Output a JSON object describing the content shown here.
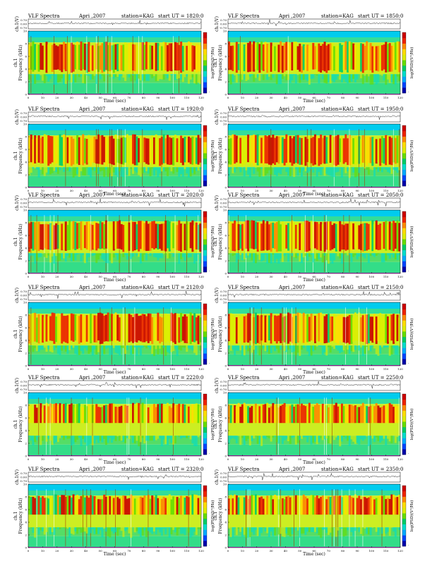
{
  "page": {
    "title_left": "VLF Spectra",
    "date": "Apri ,2007",
    "station": "station=KAG",
    "start_prefix": "start  UT ="
  },
  "colors": {
    "colormap": [
      "#0000aa",
      "#0044ff",
      "#00aaff",
      "#00ddcc",
      "#00cc66",
      "#66dd00",
      "#ddee00",
      "#ffdd00",
      "#ff8800",
      "#ee2200",
      "#cc0000"
    ],
    "background_band": "#00ccee",
    "low_band": "#00e0c0"
  },
  "panel_labels": {
    "ch1_axis": "ch.1(V)",
    "ch1_ticks": [
      "0.70",
      "0.00",
      "-0.70"
    ],
    "freq_label": "Frequency  (kHz)",
    "spectrum_ch": "ch.1",
    "freq_ticks": [
      "0",
      "2",
      "4",
      "6",
      "8",
      "10"
    ],
    "x_ticks": [
      "0",
      "10",
      "20",
      "30",
      "40",
      "50",
      "60",
      "70",
      "80",
      "90",
      "100",
      "110",
      "120"
    ],
    "xlabel": "Time  (sec)",
    "colorbar_label": "log(PSD)(V²/Hz)",
    "colorbar_ticks": [
      "-",
      "",
      ""
    ]
  },
  "chart_data": [
    {
      "type": "heatmap",
      "start_ut": "1820:0",
      "xlim": [
        0,
        120
      ],
      "ylim": [
        0,
        10
      ]
    },
    {
      "type": "heatmap",
      "start_ut": "1850:0",
      "xlim": [
        0,
        120
      ],
      "ylim": [
        0,
        10
      ]
    },
    {
      "type": "heatmap",
      "start_ut": "1920:0",
      "xlim": [
        0,
        120
      ],
      "ylim": [
        0,
        10
      ]
    },
    {
      "type": "heatmap",
      "start_ut": "1950:0",
      "xlim": [
        0,
        120
      ],
      "ylim": [
        0,
        10
      ]
    },
    {
      "type": "heatmap",
      "start_ut": "2020:0",
      "xlim": [
        0,
        120
      ],
      "ylim": [
        0,
        10
      ]
    },
    {
      "type": "heatmap",
      "start_ut": "2050:0",
      "xlim": [
        0,
        120
      ],
      "ylim": [
        0,
        10
      ]
    },
    {
      "type": "heatmap",
      "start_ut": "2120:0",
      "xlim": [
        0,
        120
      ],
      "ylim": [
        0,
        10
      ]
    },
    {
      "type": "heatmap",
      "start_ut": "2150:0",
      "xlim": [
        0,
        120
      ],
      "ylim": [
        0,
        10
      ]
    },
    {
      "type": "heatmap",
      "start_ut": "2220:0",
      "xlim": [
        0,
        120
      ],
      "ylim": [
        0,
        10
      ]
    },
    {
      "type": "heatmap",
      "start_ut": "2250:0",
      "xlim": [
        0,
        120
      ],
      "ylim": [
        0,
        10
      ]
    },
    {
      "type": "heatmap",
      "start_ut": "2320:0",
      "xlim": [
        0,
        120
      ],
      "ylim": [
        0,
        10
      ]
    },
    {
      "type": "heatmap",
      "start_ut": "2350:0",
      "xlim": [
        0,
        120
      ],
      "ylim": [
        0,
        10
      ]
    }
  ]
}
